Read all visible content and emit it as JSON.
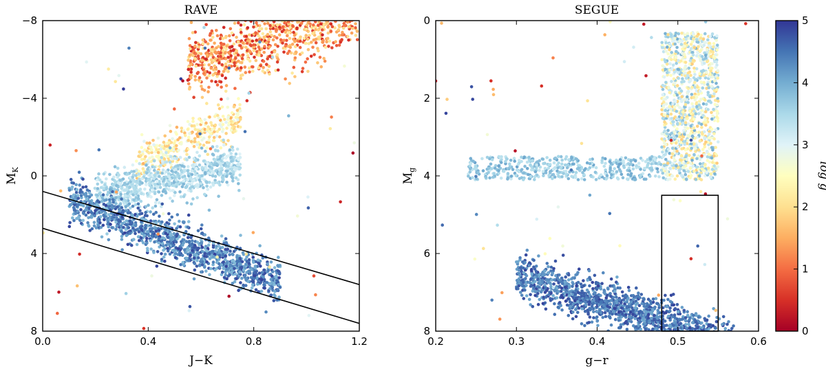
{
  "chart_data": [
    {
      "type": "scatter",
      "title": "RAVE",
      "xlabel": "J−K",
      "ylabel": "M",
      "ylabel_sub": "K",
      "xlim": [
        0.0,
        1.2
      ],
      "ylim": [
        8,
        -8
      ],
      "xticks": [
        0.0,
        0.4,
        0.8,
        1.2
      ],
      "xtick_labels": [
        "0.0",
        "0.4",
        "0.8",
        "1.2"
      ],
      "yticks": [
        -8,
        -4,
        0,
        4,
        8
      ],
      "ytick_labels": [
        "−8",
        "−4",
        "0",
        "4",
        "8"
      ],
      "color_by": "log g",
      "lines": [
        {
          "x": [
            0.0,
            1.2
          ],
          "y": [
            0.8,
            5.6
          ]
        },
        {
          "x": [
            0.0,
            1.2
          ],
          "y": [
            2.7,
            7.6
          ]
        }
      ],
      "clusters": [
        {
          "name": "red-clump-giants",
          "x_range": [
            0.55,
            1.2
          ],
          "y_center_at_x0": -3.5,
          "slope": -4.0,
          "spread": 1.3,
          "logg": [
            0.4,
            2.2
          ],
          "count": 900
        },
        {
          "name": "giant-branch",
          "x_range": [
            0.35,
            0.75
          ],
          "y_center_at_x0": 1.5,
          "slope": -6.0,
          "spread": 0.9,
          "logg": [
            1.5,
            3.0
          ],
          "count": 350
        },
        {
          "name": "subgiants",
          "x_range": [
            0.2,
            0.75
          ],
          "y_center_at_x0": 1.6,
          "slope": -3.0,
          "spread": 0.9,
          "logg": [
            3.0,
            3.9
          ],
          "count": 800
        },
        {
          "name": "dwarf-sequence",
          "x_range": [
            0.1,
            0.9
          ],
          "y_center_at_x0": 0.6,
          "slope": 5.5,
          "spread": 0.9,
          "logg": [
            3.8,
            4.9
          ],
          "count": 1200
        }
      ]
    },
    {
      "type": "scatter",
      "title": "SEGUE",
      "xlabel": "g−r",
      "ylabel": "M",
      "ylabel_sub": "g",
      "xlim": [
        0.2,
        0.6
      ],
      "ylim": [
        8,
        0
      ],
      "xticks": [
        0.2,
        0.3,
        0.4,
        0.5,
        0.6
      ],
      "xtick_labels": [
        "0.2",
        "0.3",
        "0.4",
        "0.5",
        "0.6"
      ],
      "yticks": [
        0,
        2,
        4,
        6,
        8
      ],
      "ytick_labels": [
        "0",
        "2",
        "4",
        "6",
        "8"
      ],
      "color_by": "log g",
      "selection_box": {
        "x": [
          0.48,
          0.55
        ],
        "y": [
          4.5,
          8.0
        ]
      },
      "clusters": [
        {
          "name": "giant-column",
          "x_range": [
            0.48,
            0.55
          ],
          "y_range": [
            0.3,
            4.1
          ],
          "logg": [
            1.8,
            4.0
          ],
          "count": 1100
        },
        {
          "name": "horizontal-branch",
          "x_range": [
            0.24,
            0.48
          ],
          "y_range": [
            3.5,
            4.1
          ],
          "logg": [
            3.2,
            4.1
          ],
          "count": 450
        },
        {
          "name": "main-sequence",
          "x_range": [
            0.3,
            0.57
          ],
          "y_center_at_x0": 4.6,
          "slope": 6.5,
          "spread": 0.45,
          "logg": [
            4.0,
            4.9
          ],
          "count": 1400
        }
      ]
    }
  ],
  "colorbar": {
    "label": "log g",
    "range": [
      0,
      5
    ],
    "ticks": [
      0,
      1,
      2,
      3,
      4,
      5
    ],
    "tick_labels": [
      "0",
      "1",
      "2",
      "3",
      "4",
      "5"
    ],
    "colors": [
      "#a50026",
      "#d73027",
      "#f46d43",
      "#fdae61",
      "#fee090",
      "#ffffbf",
      "#e0f3f8",
      "#abd9e9",
      "#74add1",
      "#4575b4",
      "#313695"
    ]
  }
}
